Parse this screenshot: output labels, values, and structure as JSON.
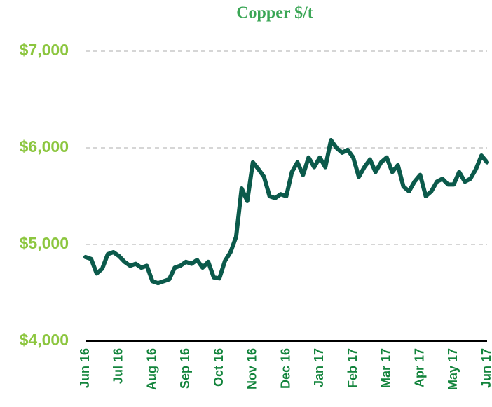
{
  "chart_data": {
    "type": "line",
    "title": "Copper $/t",
    "categories": [
      "Jun 16",
      null,
      null,
      null,
      null,
      null,
      "Jul 16",
      null,
      null,
      null,
      null,
      null,
      "Aug 16",
      null,
      null,
      null,
      null,
      null,
      "Sep 16",
      null,
      null,
      null,
      null,
      null,
      "Oct 16",
      null,
      null,
      null,
      null,
      null,
      "Nov 16",
      null,
      null,
      null,
      null,
      null,
      "Dec 16",
      null,
      null,
      null,
      null,
      null,
      "Jan 17",
      null,
      null,
      null,
      null,
      null,
      "Feb 17",
      null,
      null,
      null,
      null,
      null,
      "Mar 17",
      null,
      null,
      null,
      null,
      null,
      "Apr 17",
      null,
      null,
      null,
      null,
      null,
      "May 17",
      null,
      null,
      null,
      null,
      null,
      "Jun 17"
    ],
    "values": [
      4870,
      4850,
      4700,
      4750,
      4900,
      4920,
      4880,
      4820,
      4780,
      4800,
      4760,
      4780,
      4620,
      4600,
      4620,
      4640,
      4760,
      4780,
      4820,
      4800,
      4840,
      4760,
      4820,
      4660,
      4650,
      4830,
      4920,
      5080,
      5580,
      5450,
      5850,
      5780,
      5700,
      5500,
      5480,
      5520,
      5500,
      5750,
      5850,
      5720,
      5900,
      5800,
      5900,
      5800,
      6080,
      6000,
      5950,
      5980,
      5900,
      5700,
      5800,
      5880,
      5750,
      5850,
      5900,
      5750,
      5820,
      5600,
      5550,
      5650,
      5720,
      5500,
      5550,
      5650,
      5680,
      5620,
      5620,
      5750,
      5650,
      5680,
      5780,
      5920,
      5850
    ],
    "color": "#0b5a4b",
    "ylim": [
      4000,
      7000
    ],
    "yticks": [
      {
        "value": 4000,
        "label": "$4,000"
      },
      {
        "value": 5000,
        "label": "$5,000"
      },
      {
        "value": 6000,
        "label": "$6,000"
      },
      {
        "value": 7000,
        "label": "$7,000"
      }
    ],
    "grid": true
  }
}
